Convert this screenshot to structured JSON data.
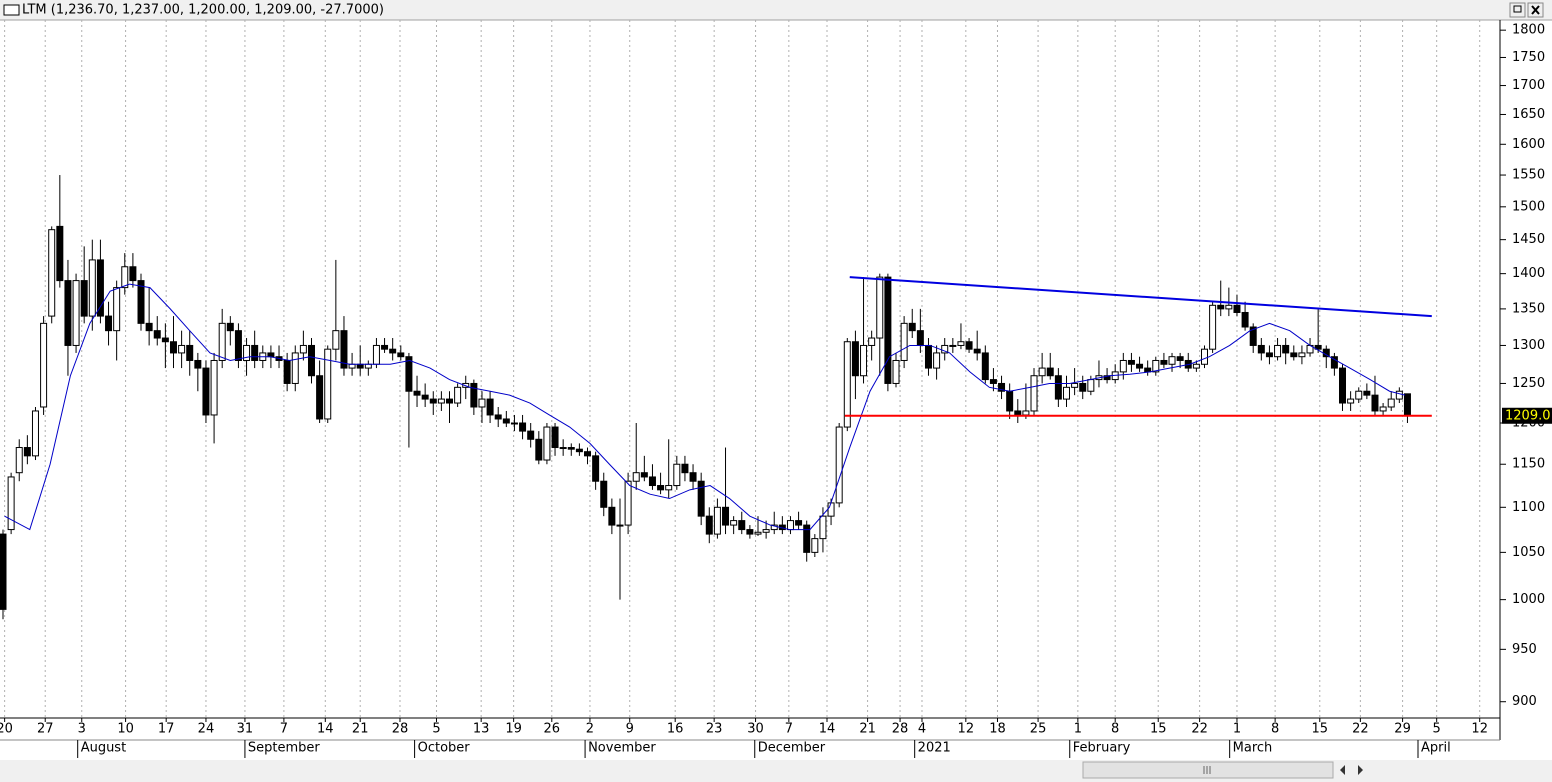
{
  "chart_data": {
    "type": "candlestick",
    "title": "LTM (1,236.70, 1,237.00, 1,200.00, 1,209.00, -27.7000)",
    "log_scale": true,
    "ylim": [
      885,
      1819
    ],
    "yticks": [
      900,
      950,
      1000,
      1050,
      1100,
      1150,
      1200,
      1250,
      1300,
      1350,
      1400,
      1450,
      1500,
      1550,
      1600,
      1650,
      1700,
      1750,
      1800
    ],
    "xlim": [
      -0.37,
      184.4
    ],
    "xgrid": true,
    "xticks": [
      {
        "value": 0.2,
        "label": "20"
      },
      {
        "value": 5.2,
        "label": "27"
      },
      {
        "value": 9.7,
        "label": "3"
      },
      {
        "value": 15.1,
        "label": "10"
      },
      {
        "value": 20.1,
        "label": "17"
      },
      {
        "value": 25.0,
        "label": "24"
      },
      {
        "value": 29.8,
        "label": "31"
      },
      {
        "value": 34.6,
        "label": "7"
      },
      {
        "value": 39.7,
        "label": "14"
      },
      {
        "value": 44.0,
        "label": "21"
      },
      {
        "value": 48.9,
        "label": "28"
      },
      {
        "value": 53.4,
        "label": "5"
      },
      {
        "value": 58.9,
        "label": "13"
      },
      {
        "value": 62.9,
        "label": "19"
      },
      {
        "value": 67.6,
        "label": "26"
      },
      {
        "value": 72.3,
        "label": "2"
      },
      {
        "value": 77.2,
        "label": "9"
      },
      {
        "value": 82.8,
        "label": "16"
      },
      {
        "value": 87.6,
        "label": "23"
      },
      {
        "value": 92.7,
        "label": "30"
      },
      {
        "value": 96.8,
        "label": "7"
      },
      {
        "value": 101.5,
        "label": "14"
      },
      {
        "value": 106.5,
        "label": "21"
      },
      {
        "value": 110.5,
        "label": "28"
      },
      {
        "value": 113.2,
        "label": "4"
      },
      {
        "value": 118.6,
        "label": "12"
      },
      {
        "value": 122.5,
        "label": "18"
      },
      {
        "value": 127.5,
        "label": "25"
      },
      {
        "value": 132.4,
        "label": "1"
      },
      {
        "value": 137.0,
        "label": "8"
      },
      {
        "value": 142.3,
        "label": "15"
      },
      {
        "value": 147.4,
        "label": "22"
      },
      {
        "value": 152.0,
        "label": "1"
      },
      {
        "value": 156.7,
        "label": "8"
      },
      {
        "value": 162.2,
        "label": "15"
      },
      {
        "value": 167.2,
        "label": "22"
      },
      {
        "value": 172.4,
        "label": "29"
      },
      {
        "value": 176.6,
        "label": "5"
      },
      {
        "value": 181.9,
        "label": "12"
      }
    ],
    "month_labels": [
      {
        "value": 9.2,
        "label": "August"
      },
      {
        "value": 29.8,
        "label": "September"
      },
      {
        "value": 50.7,
        "label": "October"
      },
      {
        "value": 71.7,
        "label": "November"
      },
      {
        "value": 92.6,
        "label": "December"
      },
      {
        "value": 112.3,
        "label": "2021"
      },
      {
        "value": 131.4,
        "label": "February"
      },
      {
        "value": 151.1,
        "label": "March"
      },
      {
        "value": 174.3,
        "label": "April"
      }
    ],
    "up_color": "#ffffff",
    "down_color": "#000000",
    "candles": [
      [
        1070,
        1075,
        980,
        990
      ],
      [
        1075,
        1140,
        1070,
        1135
      ],
      [
        1140,
        1180,
        1130,
        1170
      ],
      [
        1170,
        1185,
        1150,
        1160
      ],
      [
        1160,
        1220,
        1155,
        1215
      ],
      [
        1220,
        1340,
        1210,
        1330
      ],
      [
        1340,
        1470,
        1330,
        1465
      ],
      [
        1470,
        1550,
        1380,
        1390
      ],
      [
        1390,
        1420,
        1260,
        1300
      ],
      [
        1300,
        1400,
        1290,
        1390
      ],
      [
        1390,
        1440,
        1330,
        1340
      ],
      [
        1340,
        1450,
        1320,
        1420
      ],
      [
        1420,
        1450,
        1330,
        1340
      ],
      [
        1340,
        1360,
        1300,
        1320
      ],
      [
        1320,
        1390,
        1280,
        1380
      ],
      [
        1380,
        1430,
        1370,
        1410
      ],
      [
        1410,
        1430,
        1380,
        1390
      ],
      [
        1390,
        1400,
        1320,
        1330
      ],
      [
        1330,
        1380,
        1300,
        1320
      ],
      [
        1320,
        1340,
        1300,
        1310
      ],
      [
        1310,
        1330,
        1270,
        1305
      ],
      [
        1305,
        1340,
        1270,
        1290
      ],
      [
        1290,
        1320,
        1270,
        1300
      ],
      [
        1300,
        1320,
        1260,
        1280
      ],
      [
        1280,
        1290,
        1240,
        1270
      ],
      [
        1270,
        1280,
        1200,
        1210
      ],
      [
        1210,
        1290,
        1175,
        1280
      ],
      [
        1280,
        1350,
        1270,
        1330
      ],
      [
        1330,
        1340,
        1300,
        1320
      ],
      [
        1320,
        1330,
        1270,
        1280
      ],
      [
        1280,
        1310,
        1260,
        1300
      ],
      [
        1300,
        1320,
        1270,
        1280
      ],
      [
        1280,
        1300,
        1270,
        1290
      ],
      [
        1290,
        1300,
        1270,
        1285
      ],
      [
        1285,
        1300,
        1270,
        1280
      ],
      [
        1280,
        1290,
        1240,
        1250
      ],
      [
        1250,
        1300,
        1240,
        1290
      ],
      [
        1290,
        1320,
        1280,
        1300
      ],
      [
        1300,
        1310,
        1250,
        1260
      ],
      [
        1260,
        1280,
        1200,
        1205
      ],
      [
        1205,
        1300,
        1200,
        1295
      ],
      [
        1295,
        1420,
        1280,
        1320
      ],
      [
        1320,
        1340,
        1260,
        1270
      ],
      [
        1270,
        1290,
        1260,
        1275
      ],
      [
        1275,
        1300,
        1260,
        1270
      ],
      [
        1270,
        1280,
        1260,
        1275
      ],
      [
        1275,
        1310,
        1270,
        1300
      ],
      [
        1300,
        1310,
        1290,
        1295
      ],
      [
        1295,
        1310,
        1280,
        1290
      ],
      [
        1290,
        1300,
        1280,
        1285
      ],
      [
        1285,
        1290,
        1170,
        1240
      ],
      [
        1240,
        1260,
        1220,
        1235
      ],
      [
        1235,
        1250,
        1220,
        1230
      ],
      [
        1230,
        1240,
        1210,
        1225
      ],
      [
        1225,
        1240,
        1215,
        1230
      ],
      [
        1230,
        1240,
        1200,
        1225
      ],
      [
        1225,
        1250,
        1220,
        1245
      ],
      [
        1245,
        1260,
        1230,
        1250
      ],
      [
        1250,
        1255,
        1210,
        1220
      ],
      [
        1220,
        1240,
        1200,
        1230
      ],
      [
        1230,
        1240,
        1200,
        1210
      ],
      [
        1210,
        1220,
        1195,
        1205
      ],
      [
        1205,
        1215,
        1195,
        1200
      ],
      [
        1200,
        1210,
        1190,
        1200
      ],
      [
        1200,
        1210,
        1180,
        1190
      ],
      [
        1190,
        1200,
        1170,
        1180
      ],
      [
        1180,
        1190,
        1150,
        1155
      ],
      [
        1155,
        1200,
        1150,
        1195
      ],
      [
        1195,
        1200,
        1160,
        1170
      ],
      [
        1170,
        1180,
        1160,
        1170
      ],
      [
        1170,
        1175,
        1160,
        1168
      ],
      [
        1168,
        1175,
        1160,
        1165
      ],
      [
        1165,
        1170,
        1150,
        1160
      ],
      [
        1160,
        1165,
        1120,
        1130
      ],
      [
        1130,
        1140,
        1090,
        1100
      ],
      [
        1100,
        1110,
        1070,
        1080
      ],
      [
        1080,
        1110,
        1000,
        1080
      ],
      [
        1080,
        1140,
        1070,
        1130
      ],
      [
        1130,
        1200,
        1120,
        1140
      ],
      [
        1140,
        1160,
        1130,
        1135
      ],
      [
        1135,
        1150,
        1120,
        1125
      ],
      [
        1125,
        1140,
        1115,
        1120
      ],
      [
        1120,
        1180,
        1110,
        1125
      ],
      [
        1125,
        1160,
        1120,
        1150
      ],
      [
        1150,
        1160,
        1130,
        1140
      ],
      [
        1140,
        1150,
        1120,
        1130
      ],
      [
        1130,
        1140,
        1080,
        1090
      ],
      [
        1090,
        1100,
        1060,
        1070
      ],
      [
        1070,
        1110,
        1065,
        1100
      ],
      [
        1100,
        1170,
        1070,
        1080
      ],
      [
        1080,
        1090,
        1070,
        1085
      ],
      [
        1085,
        1095,
        1070,
        1075
      ],
      [
        1075,
        1080,
        1065,
        1070
      ],
      [
        1070,
        1090,
        1068,
        1072
      ],
      [
        1072,
        1085,
        1065,
        1075
      ],
      [
        1075,
        1095,
        1070,
        1080
      ],
      [
        1080,
        1090,
        1070,
        1075
      ],
      [
        1075,
        1090,
        1070,
        1085
      ],
      [
        1085,
        1095,
        1075,
        1080
      ],
      [
        1080,
        1085,
        1040,
        1050
      ],
      [
        1050,
        1070,
        1045,
        1065
      ],
      [
        1065,
        1100,
        1050,
        1090
      ],
      [
        1090,
        1110,
        1080,
        1105
      ],
      [
        1105,
        1200,
        1100,
        1195
      ],
      [
        1195,
        1310,
        1190,
        1305
      ],
      [
        1305,
        1320,
        1230,
        1260
      ],
      [
        1260,
        1395,
        1250,
        1300
      ],
      [
        1300,
        1320,
        1280,
        1310
      ],
      [
        1310,
        1400,
        1260,
        1395
      ],
      [
        1395,
        1400,
        1240,
        1250
      ],
      [
        1250,
        1290,
        1245,
        1280
      ],
      [
        1280,
        1340,
        1270,
        1330
      ],
      [
        1330,
        1350,
        1310,
        1320
      ],
      [
        1320,
        1350,
        1290,
        1300
      ],
      [
        1300,
        1310,
        1260,
        1270
      ],
      [
        1270,
        1300,
        1255,
        1290
      ],
      [
        1290,
        1310,
        1280,
        1300
      ],
      [
        1300,
        1310,
        1290,
        1300
      ],
      [
        1300,
        1330,
        1295,
        1305
      ],
      [
        1305,
        1310,
        1290,
        1295
      ],
      [
        1295,
        1320,
        1280,
        1290
      ],
      [
        1290,
        1300,
        1250,
        1255
      ],
      [
        1255,
        1270,
        1240,
        1250
      ],
      [
        1250,
        1260,
        1230,
        1240
      ],
      [
        1240,
        1250,
        1205,
        1215
      ],
      [
        1215,
        1230,
        1200,
        1210
      ],
      [
        1210,
        1250,
        1205,
        1215
      ],
      [
        1215,
        1270,
        1210,
        1260
      ],
      [
        1260,
        1290,
        1250,
        1270
      ],
      [
        1270,
        1290,
        1255,
        1260
      ],
      [
        1260,
        1270,
        1220,
        1230
      ],
      [
        1230,
        1260,
        1220,
        1245
      ],
      [
        1245,
        1270,
        1235,
        1250
      ],
      [
        1250,
        1260,
        1230,
        1240
      ],
      [
        1240,
        1260,
        1235,
        1255
      ],
      [
        1255,
        1280,
        1245,
        1260
      ],
      [
        1260,
        1270,
        1250,
        1255
      ],
      [
        1255,
        1275,
        1250,
        1265
      ],
      [
        1265,
        1290,
        1255,
        1280
      ],
      [
        1280,
        1290,
        1265,
        1275
      ],
      [
        1275,
        1285,
        1265,
        1270
      ],
      [
        1270,
        1280,
        1260,
        1265
      ],
      [
        1265,
        1285,
        1260,
        1280
      ],
      [
        1280,
        1290,
        1270,
        1275
      ],
      [
        1275,
        1290,
        1265,
        1285
      ],
      [
        1285,
        1290,
        1270,
        1280
      ],
      [
        1280,
        1290,
        1265,
        1270
      ],
      [
        1270,
        1280,
        1265,
        1275
      ],
      [
        1275,
        1300,
        1270,
        1295
      ],
      [
        1295,
        1360,
        1290,
        1355
      ],
      [
        1355,
        1390,
        1340,
        1350
      ],
      [
        1350,
        1380,
        1340,
        1355
      ],
      [
        1355,
        1370,
        1340,
        1345
      ],
      [
        1345,
        1360,
        1320,
        1325
      ],
      [
        1325,
        1330,
        1290,
        1300
      ],
      [
        1300,
        1310,
        1280,
        1290
      ],
      [
        1290,
        1300,
        1275,
        1285
      ],
      [
        1285,
        1310,
        1280,
        1300
      ],
      [
        1300,
        1310,
        1275,
        1290
      ],
      [
        1290,
        1300,
        1280,
        1285
      ],
      [
        1285,
        1300,
        1275,
        1290
      ],
      [
        1290,
        1310,
        1285,
        1300
      ],
      [
        1300,
        1350,
        1290,
        1295
      ],
      [
        1295,
        1300,
        1270,
        1285
      ],
      [
        1285,
        1290,
        1260,
        1270
      ],
      [
        1270,
        1275,
        1215,
        1225
      ],
      [
        1225,
        1240,
        1215,
        1230
      ],
      [
        1230,
        1245,
        1225,
        1240
      ],
      [
        1240,
        1250,
        1230,
        1235
      ],
      [
        1235,
        1260,
        1210,
        1215
      ],
      [
        1215,
        1225,
        1210,
        1220
      ],
      [
        1220,
        1240,
        1215,
        1230
      ],
      [
        1230,
        1245,
        1225,
        1240
      ],
      [
        1236.7,
        1237,
        1200,
        1209
      ]
    ],
    "series": [
      {
        "color": "#0000c8",
        "x": [
          0.2,
          3.3,
          5.8,
          8.3,
          10.7,
          13.2,
          15.6,
          18.1,
          20.6,
          23.0,
          25.5,
          28.0,
          30.4,
          32.9,
          35.3,
          37.8,
          40.3,
          42.7,
          45.2,
          47.7,
          50.1,
          52.6,
          55.0,
          57.5,
          60.0,
          62.4,
          64.9,
          67.3,
          69.8,
          72.3,
          74.7,
          77.2,
          79.7,
          82.1,
          84.6,
          87.1,
          89.5,
          92.0,
          94.5,
          96.9,
          99.4,
          101.8,
          104.3,
          106.8,
          109.2,
          111.7,
          114.2,
          116.6,
          119.1,
          121.5,
          124.0,
          126.5,
          128.9,
          131.4,
          133.9,
          136.3,
          138.8,
          141.3,
          143.7,
          146.2,
          148.6,
          151.1,
          153.6,
          156.0,
          158.5,
          161.0,
          163.4,
          165.9,
          168.4,
          170.8,
          172.7
        ],
        "values": [
          1090,
          1075,
          1150,
          1260,
          1330,
          1375,
          1385,
          1380,
          1350,
          1320,
          1290,
          1280,
          1285,
          1285,
          1280,
          1285,
          1280,
          1275,
          1275,
          1275,
          1280,
          1270,
          1255,
          1245,
          1240,
          1235,
          1225,
          1210,
          1195,
          1175,
          1150,
          1125,
          1115,
          1110,
          1120,
          1125,
          1110,
          1090,
          1080,
          1075,
          1075,
          1100,
          1170,
          1240,
          1285,
          1300,
          1300,
          1290,
          1265,
          1245,
          1240,
          1245,
          1250,
          1250,
          1255,
          1260,
          1262,
          1265,
          1270,
          1275,
          1285,
          1300,
          1320,
          1330,
          1320,
          1300,
          1285,
          1270,
          1255,
          1240,
          1235
        ]
      }
    ],
    "lines": [
      {
        "color": "#0000e0",
        "x": [
          104.3,
          176.0
        ],
        "values": [
          1395,
          1340
        ]
      },
      {
        "color": "#ff0000",
        "x": [
          103.7,
          176.0
        ],
        "values": [
          1209,
          1209
        ]
      }
    ],
    "last_price": 1209,
    "last_price_label": "1209.0"
  }
}
